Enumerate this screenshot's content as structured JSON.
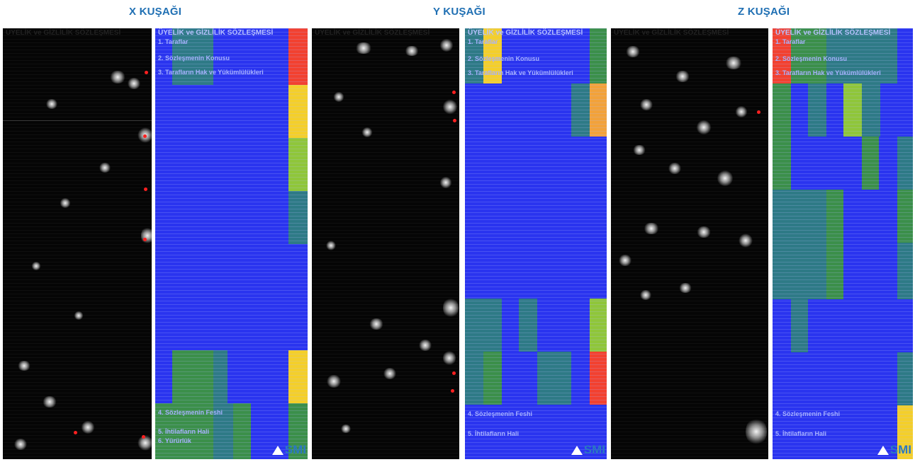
{
  "headers": {
    "x": "X KUŞAĞI",
    "y": "Y KUŞAĞI",
    "z": "Z KUŞAĞI"
  },
  "doc": {
    "title": "ÜYELİK ve GİZLİLİK SÖZLEŞMESİ",
    "section1": "1. Taraflar",
    "section2": "2. Sözleşmenin Konusu",
    "section3": "3. Tarafların Hak ve Yükümlülükleri",
    "section4": "4. Sözleşmenin Feshi",
    "section5": "5. İhtilafların Hali",
    "section6": "6. Yürürlük"
  },
  "logo_text": "SMI",
  "colors": {
    "header": "#1f6fb3",
    "blue": "#2a34ef",
    "green": "#3b8f4a",
    "teal": "#2e7a86",
    "red": "#f24130",
    "yellow": "#f4cf2a",
    "orange": "#f2a23a",
    "lime": "#8fc63a"
  }
}
